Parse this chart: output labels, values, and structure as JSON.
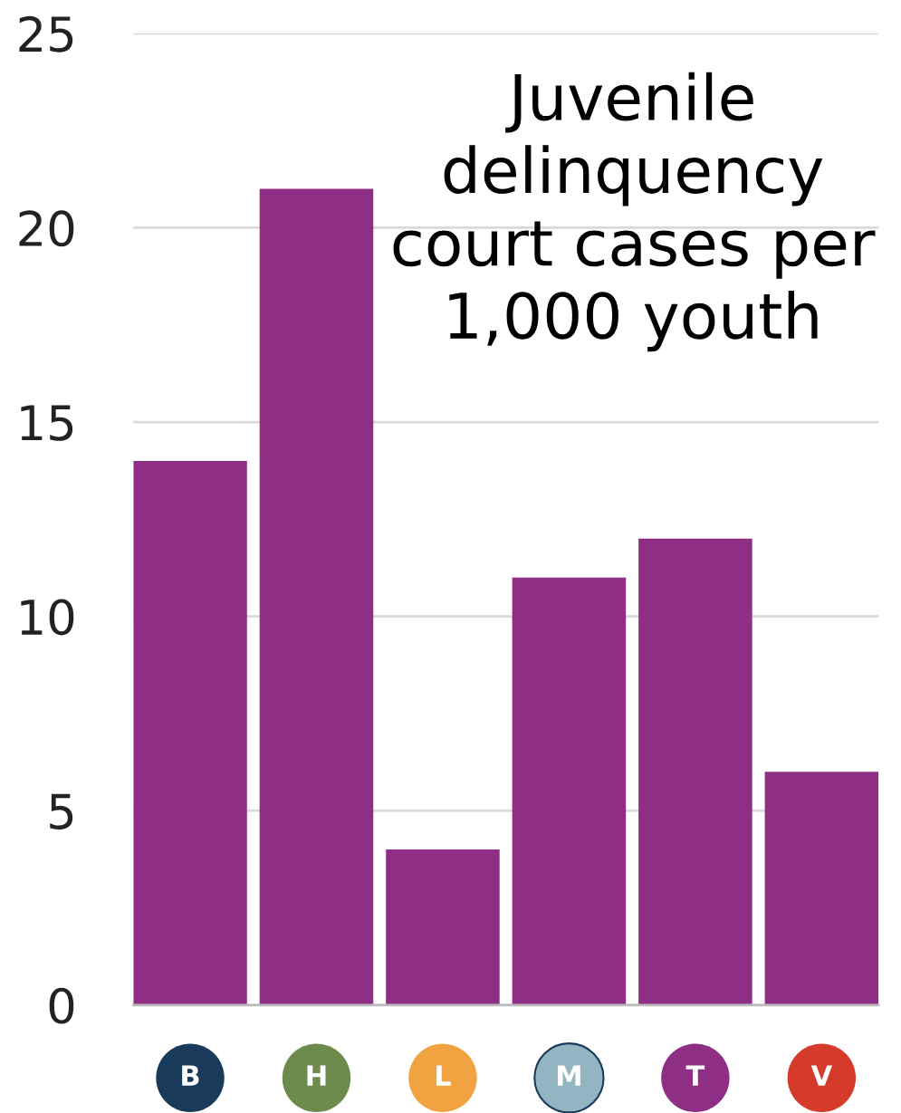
{
  "chart_data": {
    "type": "bar",
    "title": "Juvenile\ndelinquency\ncourt cases per\n1,000 youth",
    "categories": [
      "B",
      "H",
      "L",
      "M",
      "T",
      "V"
    ],
    "values": [
      14,
      21,
      4,
      11,
      12,
      6
    ],
    "color": "#8e2e85",
    "ylim": [
      0,
      25
    ],
    "yticks": [
      0,
      5,
      10,
      15,
      20,
      25
    ],
    "grid": "y"
  }
}
